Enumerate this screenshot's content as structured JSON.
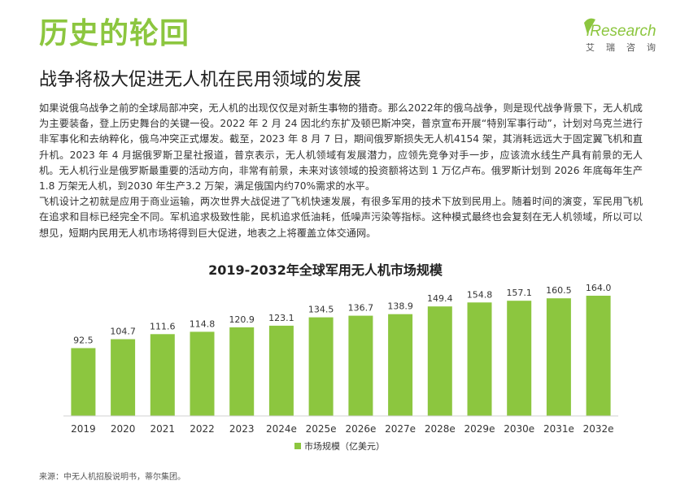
{
  "header": {
    "title": "历史的轮回",
    "subtitle": "战争将极大促进无人机在民用领域的发展",
    "logo_text": "iResearch",
    "logo_cn": "艾瑞咨询"
  },
  "body": {
    "paragraphs": [
      "如果说俄乌战争之前的全球局部冲突，无人机的出现仅仅是对新生事物的猎奇。那么2022年的俄乌战争，则是现代战争背景下，无人机成为主要装备，登上历史舞台的关键一役。2022 年 2 月 24 因北约东扩及顿巴斯冲突，普京宣布开展“特别军事行动”，计划对乌克兰进行非军事化和去纳粹化，俄乌冲突正式爆发。截至，2023 年 8 月 7 日，期间俄罗斯损失无人机4154 架，其消耗远远大于固定翼飞机和直升机。2023 年 4 月据俄罗斯卫星社报道，普京表示，无人机领域有发展潜力，应领先竞争对手一步，应该流水线生产具有前景的无人机。无人机行业是俄罗斯最重要的活动方向，非常有前景，未来对该领域的投资额将达到 1 万亿卢布。俄罗斯计划到 2026 年底每年生产 1.8 万架无人机，到2030 年生产3.2 万架，满足俄国内约70%需求的水平。",
      "飞机设计之初就是应用于商业运输，两次世界大战促进了飞机快速发展，有很多军用的技术下放到民用上。随着时间的演变，军民用飞机在追求和目标已经完全不同。军机追求极致性能，民机追求低油耗，低噪声污染等指标。这种模式最终也会复刻在无人机领域，所以可以想见，短期内民用无人机市场将得到巨大促进，地表之上将覆盖立体交通网。"
    ]
  },
  "chart_data": {
    "type": "bar",
    "title": "2019-2032年全球军用无人机市场规模",
    "categories": [
      "2019",
      "2020",
      "2021",
      "2022",
      "2023",
      "2024e",
      "2025e",
      "2026e",
      "2027e",
      "2028e",
      "2029e",
      "2030e",
      "2031e",
      "2032e"
    ],
    "series": [
      {
        "name": "市场规模（亿美元）",
        "values": [
          92.5,
          104.7,
          111.6,
          114.8,
          120.9,
          123.1,
          134.5,
          136.7,
          138.9,
          149.4,
          154.8,
          157.1,
          160.5,
          164.0
        ],
        "labels": [
          "92.5",
          "104.7",
          "111.6",
          "114.8",
          "120.9",
          "123.1",
          "134.5",
          "136.7",
          "138.9",
          "149.4",
          "154.8",
          "157.1",
          "160.5",
          "164.0"
        ],
        "color": "#8cc63f"
      }
    ],
    "xlabel": "",
    "ylabel": "",
    "ylim": [
      0,
      164.0
    ],
    "grid": false,
    "legend": "bottom-center"
  },
  "footer": {
    "source": "来源：中无人机招股说明书，蒂尔集团。"
  },
  "colors": {
    "accent": "#8cc63f",
    "text": "#333333"
  }
}
